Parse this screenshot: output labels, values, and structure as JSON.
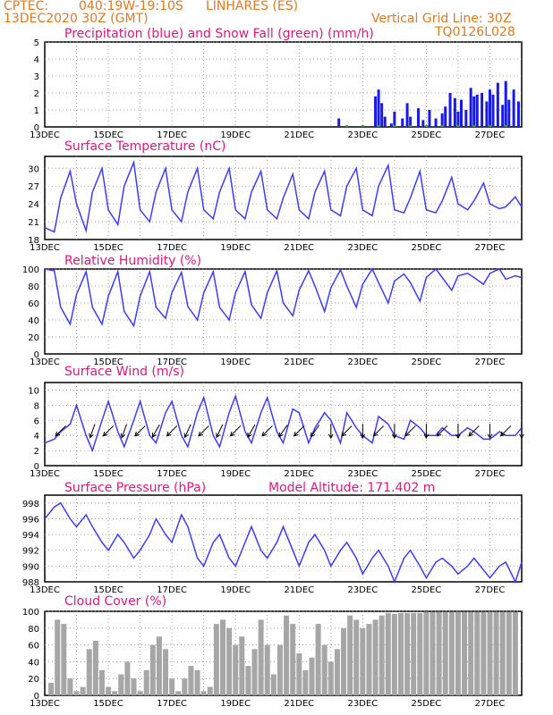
{
  "header": {
    "source": "CPTEC:",
    "location_coords": "040:19W-19:10S",
    "location_name": "LINHARES (ES)",
    "init_time": "13DEC2020 30Z (GMT)",
    "grid_note": "Vertical Grid Line: 30Z",
    "model_code": "TQ0126L028"
  },
  "colors": {
    "header_text": "#e6781e",
    "panel_title": "#e0157e",
    "line": "#3c3cff",
    "precip": "#1a1ae6",
    "snow": "#22aa22",
    "cloud": "#a6a6a6"
  },
  "chart_data": [
    {
      "type": "bar",
      "title": "Precipitation (blue) and Snow Fall (green) (mm/h)",
      "x_labels": [
        "13DEC",
        "15DEC",
        "17DEC",
        "19DEC",
        "21DEC",
        "23DEC",
        "25DEC",
        "27DEC"
      ],
      "y_ticks": [
        "0",
        "1",
        "2",
        "3",
        "4",
        "5"
      ],
      "ylim": [
        0,
        5
      ],
      "grid": true,
      "series": [
        {
          "name": "Precipitation",
          "color": "#1a1ae6",
          "x": [
            9.25,
            10.4,
            10.5,
            10.6,
            10.7,
            10.9,
            11.0,
            11.25,
            11.4,
            11.5,
            11.75,
            11.9,
            12.1,
            12.3,
            12.5,
            12.6,
            12.75,
            12.9,
            13.0,
            13.1,
            13.25,
            13.4,
            13.5,
            13.6,
            13.75,
            13.9,
            14.0,
            14.1,
            14.25,
            14.4,
            14.5,
            14.6,
            14.75,
            14.9
          ],
          "values": [
            0.5,
            1.8,
            2.2,
            1.4,
            0.6,
            0.2,
            0.9,
            0.5,
            1.4,
            0.6,
            1.1,
            0.4,
            1.0,
            0.5,
            0.8,
            1.2,
            2.0,
            1.7,
            0.9,
            1.6,
            1.0,
            2.3,
            1.8,
            1.9,
            2.0,
            1.5,
            2.2,
            1.9,
            2.6,
            1.3,
            2.7,
            1.6,
            2.2,
            1.5
          ]
        },
        {
          "name": "Snow Fall",
          "color": "#22aa22",
          "x": [
            9.5,
            10.0,
            10.5,
            11.0,
            11.5,
            12.0,
            12.5,
            13.0,
            13.5,
            14.0,
            14.5
          ],
          "values": [
            0.1,
            0.1,
            0.1,
            0.1,
            0.1,
            0.1,
            0.1,
            0.1,
            0.1,
            0.1,
            0.1
          ]
        }
      ]
    },
    {
      "type": "line",
      "title": "Surface Temperature (nC)",
      "x_labels": [
        "13DEC",
        "15DEC",
        "17DEC",
        "19DEC",
        "21DEC",
        "23DEC",
        "25DEC",
        "27DEC"
      ],
      "y_ticks": [
        "18",
        "21",
        "24",
        "27",
        "30"
      ],
      "ylim": [
        18,
        32
      ],
      "grid": true,
      "series": [
        {
          "name": "Temperature",
          "color": "#3c3cff",
          "x": [
            0,
            0.3,
            0.5,
            0.8,
            1.0,
            1.3,
            1.5,
            1.8,
            2.0,
            2.3,
            2.5,
            2.8,
            3.0,
            3.3,
            3.5,
            3.8,
            4.0,
            4.3,
            4.5,
            4.8,
            5.0,
            5.3,
            5.5,
            5.8,
            6.0,
            6.3,
            6.5,
            6.8,
            7.0,
            7.3,
            7.5,
            7.8,
            8.0,
            8.3,
            8.5,
            8.8,
            9.0,
            9.3,
            9.5,
            9.8,
            10.0,
            10.3,
            10.5,
            10.8,
            11.0,
            11.3,
            11.5,
            11.8,
            12.0,
            12.3,
            12.5,
            12.8,
            13.0,
            13.3,
            13.5,
            13.8,
            14.0,
            14.3,
            14.5,
            14.8,
            15.0
          ],
          "values": [
            20,
            19.3,
            25,
            29.5,
            24,
            19.5,
            26,
            30,
            23,
            20.5,
            27,
            31,
            23,
            21,
            26,
            30,
            23,
            21,
            26,
            30,
            23,
            21.5,
            26,
            30,
            23,
            21.5,
            26,
            29.5,
            23,
            21.5,
            25,
            29,
            23,
            21.5,
            26,
            29.5,
            23,
            22,
            27,
            30,
            23,
            22,
            27,
            30.5,
            23,
            22.5,
            25,
            29.5,
            23,
            22.5,
            24.5,
            28.5,
            24,
            23,
            24.5,
            27.5,
            24,
            23.2,
            23.5,
            25.2,
            23.5
          ]
        }
      ]
    },
    {
      "type": "line",
      "title": "Relative Humidity (%)",
      "x_labels": [
        "13DEC",
        "15DEC",
        "17DEC",
        "19DEC",
        "21DEC",
        "23DEC",
        "25DEC",
        "27DEC"
      ],
      "y_ticks": [
        "0",
        "20",
        "40",
        "60",
        "80",
        "100"
      ],
      "ylim": [
        0,
        100
      ],
      "grid": true,
      "series": [
        {
          "name": "Relative Humidity",
          "color": "#3c3cff",
          "x": [
            0,
            0.3,
            0.5,
            0.8,
            1.0,
            1.3,
            1.5,
            1.8,
            2.0,
            2.3,
            2.5,
            2.8,
            3.0,
            3.3,
            3.5,
            3.8,
            4.0,
            4.3,
            4.5,
            4.8,
            5.0,
            5.3,
            5.5,
            5.8,
            6.0,
            6.3,
            6.5,
            6.8,
            7.0,
            7.3,
            7.5,
            7.8,
            8.0,
            8.3,
            8.5,
            8.8,
            9.0,
            9.3,
            9.5,
            9.8,
            10.0,
            10.3,
            10.5,
            10.8,
            11.0,
            11.3,
            11.5,
            11.8,
            12.0,
            12.3,
            12.5,
            12.8,
            13.0,
            13.3,
            13.5,
            13.8,
            14.0,
            14.3,
            14.5,
            14.8,
            15.0
          ],
          "values": [
            100,
            98,
            55,
            35,
            70,
            97,
            55,
            35,
            68,
            97,
            50,
            33,
            68,
            97,
            55,
            42,
            72,
            96,
            56,
            40,
            72,
            97,
            55,
            40,
            72,
            97,
            58,
            42,
            72,
            98,
            60,
            45,
            75,
            98,
            80,
            50,
            78,
            99,
            80,
            55,
            82,
            100,
            84,
            60,
            86,
            94,
            84,
            62,
            90,
            100,
            90,
            75,
            92,
            95,
            90,
            82,
            95,
            100,
            88,
            92,
            90
          ]
        }
      ]
    },
    {
      "type": "line",
      "title": "Surface Wind (m/s)",
      "x_labels": [
        "13DEC",
        "15DEC",
        "17DEC",
        "19DEC",
        "21DEC",
        "23DEC",
        "25DEC",
        "27DEC"
      ],
      "y_ticks": [
        "0",
        "2",
        "4",
        "6",
        "8",
        "10"
      ],
      "ylim": [
        0,
        11
      ],
      "grid": true,
      "series": [
        {
          "name": "Wind speed",
          "color": "#3c3cff",
          "x": [
            0,
            0.3,
            0.5,
            0.8,
            1.0,
            1.3,
            1.5,
            1.8,
            2.0,
            2.3,
            2.5,
            2.8,
            3.0,
            3.3,
            3.5,
            3.8,
            4.0,
            4.3,
            4.5,
            4.8,
            5.0,
            5.3,
            5.5,
            5.8,
            6.0,
            6.3,
            6.5,
            6.8,
            7.0,
            7.3,
            7.5,
            7.8,
            8.0,
            8.3,
            8.5,
            8.8,
            9.0,
            9.3,
            9.5,
            9.8,
            10.0,
            10.3,
            10.5,
            10.8,
            11.0,
            11.3,
            11.5,
            11.8,
            12.0,
            12.3,
            12.5,
            12.8,
            13.0,
            13.3,
            13.5,
            13.8,
            14.0,
            14.3,
            14.5,
            14.8,
            15.0
          ],
          "values": [
            3,
            3.5,
            4.5,
            5.5,
            8,
            4,
            2,
            6,
            8.5,
            4.5,
            2.5,
            6,
            8.5,
            4,
            3,
            7,
            8.5,
            4,
            2.5,
            7,
            9,
            4,
            2.5,
            7,
            9.2,
            4.5,
            3,
            7,
            9,
            4.5,
            3,
            7.5,
            7,
            3,
            5,
            7,
            6,
            3,
            7,
            5,
            4,
            3,
            6.5,
            5.5,
            4,
            3.5,
            6,
            5,
            4,
            4,
            5,
            4,
            4,
            5,
            4.5,
            3.5,
            3.5,
            4.5,
            4,
            4,
            5
          ]
        }
      ],
      "wind_arrows": [
        {
          "x": 0.5,
          "angle": 225
        },
        {
          "x": 1.5,
          "angle": 200
        },
        {
          "x": 2.0,
          "angle": 225
        },
        {
          "x": 2.5,
          "angle": 200
        },
        {
          "x": 3.0,
          "angle": 225
        },
        {
          "x": 3.5,
          "angle": 210
        },
        {
          "x": 4.0,
          "angle": 225
        },
        {
          "x": 4.5,
          "angle": 205
        },
        {
          "x": 5.0,
          "angle": 225
        },
        {
          "x": 5.5,
          "angle": 205
        },
        {
          "x": 6.0,
          "angle": 225
        },
        {
          "x": 6.5,
          "angle": 210
        },
        {
          "x": 7.0,
          "angle": 225
        },
        {
          "x": 7.5,
          "angle": 215
        },
        {
          "x": 8.0,
          "angle": 225
        },
        {
          "x": 8.5,
          "angle": 215
        },
        {
          "x": 9.0,
          "angle": 180
        },
        {
          "x": 9.5,
          "angle": 225
        },
        {
          "x": 10.0,
          "angle": 180
        },
        {
          "x": 10.5,
          "angle": 225
        },
        {
          "x": 11.0,
          "angle": 180
        },
        {
          "x": 11.5,
          "angle": 225
        },
        {
          "x": 12.0,
          "angle": 180
        },
        {
          "x": 12.5,
          "angle": 225
        },
        {
          "x": 13.0,
          "angle": 180
        },
        {
          "x": 13.5,
          "angle": 225
        },
        {
          "x": 14.0,
          "angle": 180
        },
        {
          "x": 14.5,
          "angle": 225
        },
        {
          "x": 15.0,
          "angle": 180
        }
      ]
    },
    {
      "type": "line",
      "title": "Surface Pressure (hPa)",
      "annotation": "Model Altitude: 171.402 m",
      "x_labels": [
        "13DEC",
        "15DEC",
        "17DEC",
        "19DEC",
        "21DEC",
        "23DEC",
        "25DEC",
        "27DEC"
      ],
      "y_ticks": [
        "988",
        "990",
        "992",
        "994",
        "996",
        "998"
      ],
      "ylim": [
        988,
        999
      ],
      "grid": true,
      "series": [
        {
          "name": "Pressure",
          "color": "#3c3cff",
          "x": [
            0,
            0.3,
            0.5,
            0.8,
            1.0,
            1.3,
            1.5,
            1.8,
            2.0,
            2.3,
            2.5,
            2.8,
            3.0,
            3.3,
            3.5,
            3.8,
            4.0,
            4.3,
            4.5,
            4.8,
            5.0,
            5.3,
            5.5,
            5.8,
            6.0,
            6.3,
            6.5,
            6.8,
            7.0,
            7.3,
            7.5,
            7.8,
            8.0,
            8.3,
            8.5,
            8.8,
            9.0,
            9.3,
            9.5,
            9.8,
            10.0,
            10.3,
            10.5,
            10.8,
            11.0,
            11.3,
            11.5,
            11.8,
            12.0,
            12.3,
            12.5,
            12.8,
            13.0,
            13.3,
            13.5,
            13.8,
            14.0,
            14.3,
            14.5,
            14.8,
            15.0
          ],
          "values": [
            996,
            997.5,
            998,
            996,
            995,
            996.5,
            995,
            993,
            992,
            994,
            993,
            991,
            992,
            994,
            996,
            994,
            993,
            996.5,
            995,
            991,
            990,
            993,
            994,
            991,
            990,
            993,
            995,
            992,
            991,
            993,
            995,
            992,
            990,
            993,
            994,
            992,
            990,
            992,
            993,
            991,
            989,
            991,
            992,
            990,
            988,
            991,
            992,
            990,
            988.5,
            990.5,
            991,
            990,
            989,
            990,
            991,
            989.5,
            988.5,
            990,
            990.5,
            988,
            990.5
          ]
        }
      ]
    },
    {
      "type": "bar",
      "title": "Cloud Cover (%)",
      "x_labels": [
        "13DEC",
        "15DEC",
        "17DEC",
        "19DEC",
        "21DEC",
        "23DEC",
        "25DEC",
        "27DEC"
      ],
      "y_ticks": [
        "0",
        "20",
        "40",
        "60",
        "80",
        "100"
      ],
      "ylim": [
        0,
        100
      ],
      "grid": true,
      "series": [
        {
          "name": "Cloud Cover",
          "color": "#a6a6a6",
          "x": [
            0.2,
            0.4,
            0.6,
            0.8,
            1.0,
            1.2,
            1.4,
            1.6,
            1.8,
            2.0,
            2.2,
            2.4,
            2.6,
            2.8,
            3.0,
            3.2,
            3.4,
            3.6,
            3.8,
            4.0,
            4.2,
            4.4,
            4.6,
            4.8,
            5.0,
            5.2,
            5.4,
            5.6,
            5.8,
            6.0,
            6.2,
            6.4,
            6.6,
            6.8,
            7.0,
            7.2,
            7.4,
            7.6,
            7.8,
            8.0,
            8.2,
            8.4,
            8.6,
            8.8,
            9.0,
            9.2,
            9.4,
            9.6,
            9.8,
            10.0,
            10.2,
            10.4,
            10.6,
            10.8,
            11.0,
            11.2,
            11.4,
            11.6,
            11.8,
            12.0,
            12.2,
            12.4,
            12.6,
            12.8,
            13.0,
            13.2,
            13.4,
            13.6,
            13.8,
            14.0,
            14.2,
            14.4,
            14.6,
            14.8
          ],
          "values": [
            15,
            90,
            85,
            20,
            5,
            10,
            55,
            65,
            30,
            10,
            5,
            25,
            40,
            20,
            5,
            30,
            60,
            70,
            55,
            20,
            5,
            20,
            35,
            30,
            5,
            10,
            85,
            90,
            80,
            60,
            70,
            35,
            55,
            90,
            60,
            25,
            60,
            95,
            85,
            50,
            30,
            45,
            85,
            60,
            40,
            55,
            80,
            95,
            90,
            80,
            85,
            90,
            95,
            98,
            97,
            98,
            98,
            98,
            98,
            99,
            99,
            99,
            99,
            99,
            99,
            99,
            99,
            99,
            99,
            99,
            99,
            99,
            99,
            99
          ]
        }
      ]
    }
  ]
}
